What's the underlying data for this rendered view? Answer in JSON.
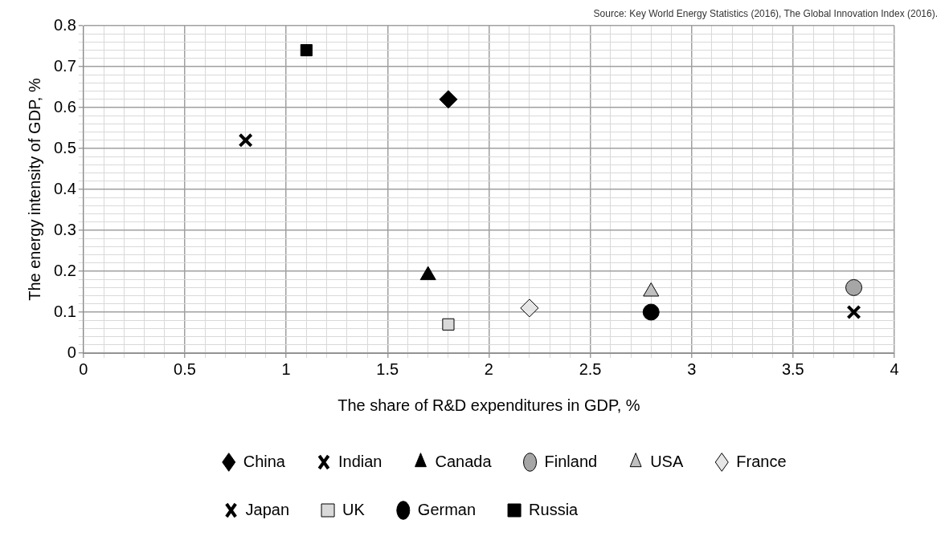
{
  "chart_data": {
    "type": "scatter",
    "xlabel": "The share of R&D expenditures in GDP, %",
    "ylabel": "The energy intensity of GDP, %",
    "annotations": [
      "Source: Key World Energy Statistics (2016), The Global Innovation Index (2016)."
    ],
    "xlim": [
      0,
      4
    ],
    "ylim": [
      0,
      0.8
    ],
    "xticks": [
      0,
      {
        "value": 0.1,
        "label": null
      },
      {
        "value": 0.2,
        "label": null
      },
      {
        "value": 0.3,
        "label": null
      },
      {
        "value": 0.4,
        "label": null
      },
      0.5,
      {
        "value": 0.6,
        "label": null
      },
      {
        "value": 0.7,
        "label": null
      },
      {
        "value": 0.8,
        "label": null
      },
      {
        "value": 0.9,
        "label": null
      },
      1,
      {
        "value": 1.1,
        "label": null
      },
      {
        "value": 1.2,
        "label": null
      },
      {
        "value": 1.3,
        "label": null
      },
      {
        "value": 1.4,
        "label": null
      },
      1.5,
      {
        "value": 1.6,
        "label": null
      },
      {
        "value": 1.7,
        "label": null
      },
      {
        "value": 1.8,
        "label": null
      },
      {
        "value": 1.9,
        "label": null
      },
      2,
      {
        "value": 2.1,
        "label": null
      },
      {
        "value": 2.2,
        "label": null
      },
      {
        "value": 2.3,
        "label": null
      },
      {
        "value": 2.4,
        "label": null
      },
      2.5,
      {
        "value": 2.6,
        "label": null
      },
      {
        "value": 2.7,
        "label": null
      },
      {
        "value": 2.8,
        "label": null
      },
      {
        "value": 2.9,
        "label": null
      },
      3,
      {
        "value": 3.1,
        "label": null
      },
      {
        "value": 3.2,
        "label": null
      },
      {
        "value": 3.3,
        "label": null
      },
      {
        "value": 3.4,
        "label": null
      },
      3.5,
      {
        "value": 3.6,
        "label": null
      },
      {
        "value": 3.7,
        "label": null
      },
      {
        "value": 3.8,
        "label": null
      },
      {
        "value": 3.9,
        "label": null
      },
      4
    ],
    "yticks": [
      0,
      {
        "value": 0.02,
        "label": null
      },
      {
        "value": 0.04,
        "label": null
      },
      {
        "value": 0.06,
        "label": null
      },
      {
        "value": 0.08,
        "label": null
      },
      0.1,
      {
        "value": 0.12,
        "label": null
      },
      {
        "value": 0.14,
        "label": null
      },
      {
        "value": 0.16,
        "label": null
      },
      {
        "value": 0.18,
        "label": null
      },
      0.2,
      {
        "value": 0.22,
        "label": null
      },
      {
        "value": 0.24,
        "label": null
      },
      {
        "value": 0.26,
        "label": null
      },
      {
        "value": 0.28,
        "label": null
      },
      0.3,
      {
        "value": 0.32,
        "label": null
      },
      {
        "value": 0.34,
        "label": null
      },
      {
        "value": 0.36,
        "label": null
      },
      {
        "value": 0.38,
        "label": null
      },
      0.4,
      {
        "value": 0.42,
        "label": null
      },
      {
        "value": 0.44,
        "label": null
      },
      {
        "value": 0.46,
        "label": null
      },
      {
        "value": 0.48,
        "label": null
      },
      0.5,
      {
        "value": 0.52,
        "label": null
      },
      {
        "value": 0.54,
        "label": null
      },
      {
        "value": 0.56,
        "label": null
      },
      {
        "value": 0.58,
        "label": null
      },
      0.6,
      {
        "value": 0.62,
        "label": null
      },
      {
        "value": 0.64,
        "label": null
      },
      {
        "value": 0.66,
        "label": null
      },
      {
        "value": 0.68,
        "label": null
      },
      0.7,
      {
        "value": 0.72,
        "label": null
      },
      {
        "value": 0.74,
        "label": null
      },
      {
        "value": 0.76,
        "label": null
      },
      {
        "value": 0.78,
        "label": null
      },
      0.8
    ],
    "grid": true,
    "legend": "bottom",
    "series": [
      {
        "name": "China",
        "color": "#000000",
        "marker": "diamond",
        "x": [
          1.8
        ],
        "values": [
          0.62
        ]
      },
      {
        "name": "Indian",
        "color": "#000000",
        "marker": "cross",
        "x": [
          0.8
        ],
        "values": [
          0.52
        ]
      },
      {
        "name": "Canada",
        "color": "#000000",
        "marker": "triangle",
        "x": [
          1.7
        ],
        "values": [
          0.19
        ]
      },
      {
        "name": "Finland",
        "color": "#a6a6a6",
        "marker": "circle",
        "x": [
          3.8
        ],
        "values": [
          0.16
        ]
      },
      {
        "name": "USA",
        "color": "#bfbfbf",
        "marker": "triangle",
        "x": [
          2.8
        ],
        "values": [
          0.15
        ]
      },
      {
        "name": "France",
        "color": "#e7e6e6",
        "marker": "diamond",
        "x": [
          2.2
        ],
        "values": [
          0.11
        ]
      },
      {
        "name": "Japan",
        "color": "#000000",
        "marker": "cross",
        "x": [
          3.8
        ],
        "values": [
          0.1
        ]
      },
      {
        "name": "UK",
        "color": "#d9d9d9",
        "marker": "square",
        "x": [
          1.8
        ],
        "values": [
          0.07
        ]
      },
      {
        "name": "German",
        "color": "#000000",
        "marker": "circle",
        "x": [
          2.8
        ],
        "values": [
          0.1
        ]
      },
      {
        "name": "Russia",
        "color": "#000000",
        "marker": "square",
        "x": [
          1.1
        ],
        "values": [
          0.74
        ]
      }
    ]
  }
}
